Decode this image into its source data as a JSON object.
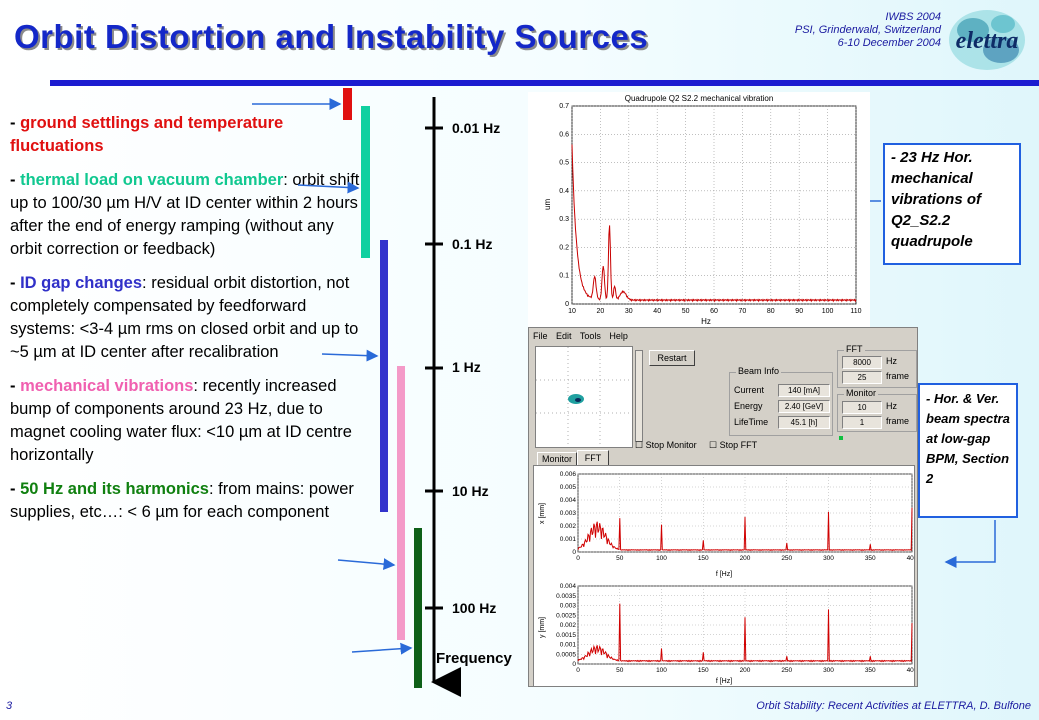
{
  "title": "Orbit Distortion and Instability Sources",
  "conference": {
    "line1": "IWBS 2004",
    "line2": "PSI, Grinderwald, Switzerland",
    "line3": "6-10 December 2004"
  },
  "logo_text": "elettra",
  "footer": {
    "page": "3",
    "right": "Orbit Stability: Recent Activities at ELETTRA, D. Bulfone"
  },
  "colors": {
    "title": "#1428c8",
    "red": "#e01010",
    "green": "#10c890",
    "blue": "#3030c8",
    "pink": "#f080c0",
    "dark_green": "#106018"
  },
  "bullets": [
    {
      "dash": "- ",
      "key": "ground settlings and temperature fluctuations",
      "rest": "",
      "color": "#e01010"
    },
    {
      "dash": "- ",
      "key": "thermal load on vacuum chamber",
      "rest": ": orbit shift up to 100/30 µm H/V at ID center within 2 hours after the end of energy ramping (without any orbit correction or feedback)",
      "color": "#10c890"
    },
    {
      "dash": "- ",
      "key": "ID gap changes",
      "rest": ": residual orbit distortion, not completely compensated by feedforward systems: <3-4 µm rms on closed orbit and up to ~5 µm at ID center after recalibration",
      "color": "#3030c8"
    },
    {
      "dash": "- ",
      "key": "mechanical vibrations",
      "rest": ": recently increased bump of components around 23 Hz, due to magnet cooling water flux: <10 µm at ID centre horizontally",
      "color": "#f060b0"
    },
    {
      "dash": "- ",
      "key": "50 Hz and its harmonics",
      "rest": ": from mains: power supplies, etc…: < 6 µm for each component",
      "color": "#108010"
    }
  ],
  "axis": {
    "labels": [
      "0.01 Hz",
      "0.1 Hz",
      "1 Hz",
      "10 Hz",
      "100 Hz"
    ],
    "title": "Frequency"
  },
  "callouts": {
    "c1": "- 23 Hz Hor. mechanical vibrations of Q2_S2.2 quadrupole",
    "c2": "- Hor. & Ver. beam spectra at low-gap BPM, Section 2"
  },
  "quad_plot": {
    "title": "Quadrupole Q2 S2.2 mechanical vibration",
    "ylabel": "um",
    "xlabel": "Hz",
    "xticks": [
      "10",
      "20",
      "30",
      "40",
      "50",
      "60",
      "70",
      "80",
      "90",
      "100",
      "110"
    ],
    "yticks": [
      "0",
      "0.1",
      "0.2",
      "0.3",
      "0.4",
      "0.5",
      "0.6",
      "0.7"
    ]
  },
  "daq": {
    "menu": [
      "File",
      "Edit",
      "Tools",
      "Help"
    ],
    "restart": "Restart",
    "beam_info": "Beam Info",
    "current_label": "Current",
    "current_value": "140 [mA]",
    "energy_label": "Energy",
    "energy_value": "2.40 [GeV]",
    "lifetime_label": "LifeTime",
    "lifetime_value": "45.1 [h]",
    "fft": "FFT",
    "fft_hz": "8000",
    "fft_hz_unit": "Hz",
    "fft_frames": "25",
    "fft_frames_unit": "frame",
    "monitor": "Monitor",
    "monitor_val1": "10",
    "monitor_val2": "1",
    "monitor_unit1": "Hz",
    "monitor_unit2": "frame",
    "stop_monitor": "Stop Monitor",
    "stop_fft": "Stop FFT",
    "tab_monitor": "Monitor",
    "tab_fft": "FFT",
    "x_label": "x [mm]",
    "y_label": "y [mm]",
    "f_label": "f [Hz]",
    "x_yticks": [
      "0.006",
      "0.005",
      "0.004",
      "0.003",
      "0.002",
      "0.001",
      "0"
    ],
    "y_yticks": [
      "0.004",
      "0.0035",
      "0.003",
      "0.0025",
      "0.002",
      "0.0015",
      "0.001",
      "0.0005",
      "0"
    ],
    "xticks": [
      "0",
      "50",
      "100",
      "150",
      "200",
      "250",
      "300",
      "350",
      "400"
    ]
  }
}
